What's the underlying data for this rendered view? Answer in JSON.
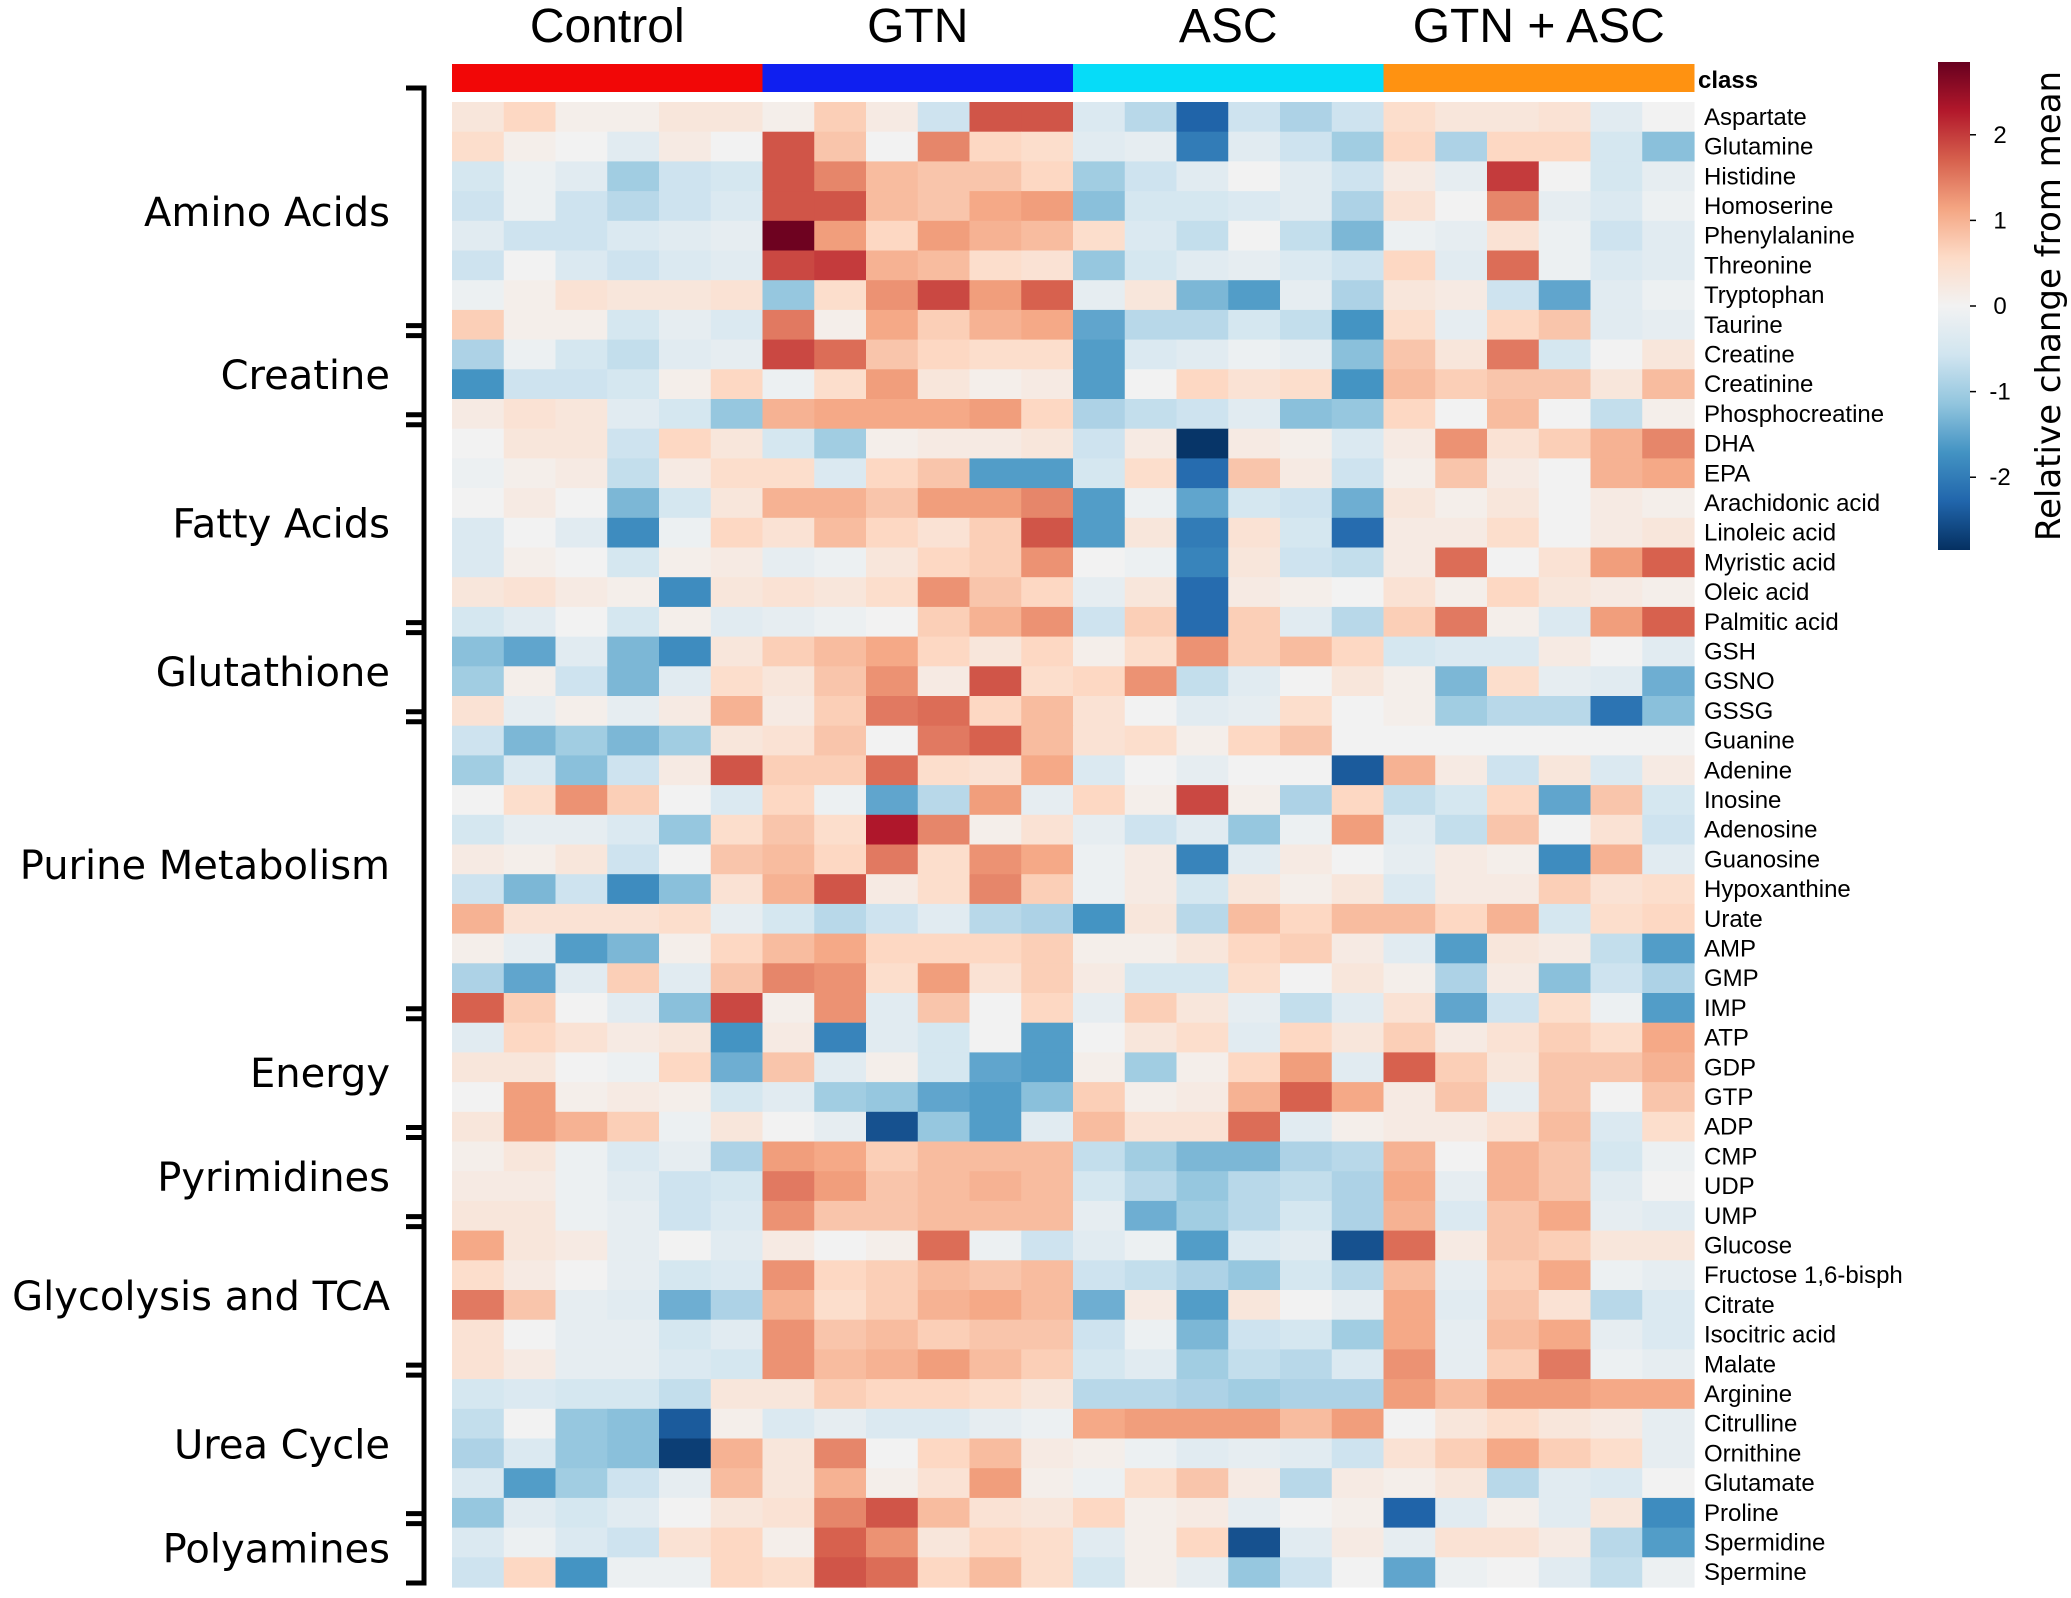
{
  "chart_data": {
    "type": "heatmap",
    "title": "",
    "groups": [
      {
        "label": "Control",
        "color": "#f20707",
        "samples": 6
      },
      {
        "label": "GTN",
        "color": "#0f1ff0",
        "samples": 6
      },
      {
        "label": "ASC",
        "color": "#06dcf8",
        "samples": 6
      },
      {
        "label": "GTN + ASC",
        "color": "#ff9211",
        "samples": 6
      }
    ],
    "class_label": "class",
    "rows": [
      "Aspartate",
      "Glutamine",
      "Histidine",
      "Homoserine",
      "Phenylalanine",
      "Threonine",
      "Tryptophan",
      "Taurine",
      "Creatine",
      "Creatinine",
      "Phosphocreatine",
      "DHA",
      "EPA",
      "Arachidonic acid",
      "Linoleic acid",
      "Myristic acid",
      "Oleic acid",
      "Palmitic acid",
      "GSH",
      "GSNO",
      "GSSG",
      "Guanine",
      "Adenine",
      "Inosine",
      "Adenosine",
      "Guanosine",
      "Hypoxanthine",
      "Urate",
      "AMP",
      "GMP",
      "IMP",
      "ATP",
      "GDP",
      "GTP",
      "ADP",
      "CMP",
      "UDP",
      "UMP",
      "Glucose",
      "Fructose 1,6-bisph",
      "Citrate",
      "Isocitric acid",
      "Malate",
      "Arginine",
      "Citrulline",
      "Ornithine",
      "Glutamate",
      "Proline",
      "Spermidine",
      "Spermine"
    ],
    "row_groups": [
      {
        "label": "Amino Acids",
        "start": 0,
        "end": 7
      },
      {
        "label": "Creatine",
        "start": 8,
        "end": 10
      },
      {
        "label": "Fatty Acids",
        "start": 11,
        "end": 17
      },
      {
        "label": "Glutathione",
        "start": 18,
        "end": 20
      },
      {
        "label": "Purine Metabolism",
        "start": 21,
        "end": 30
      },
      {
        "label": "Energy",
        "start": 31,
        "end": 34
      },
      {
        "label": "Pyrimidines",
        "start": 35,
        "end": 37
      },
      {
        "label": "Glycolysis and TCA",
        "start": 38,
        "end": 42
      },
      {
        "label": "Urea Cycle",
        "start": 43,
        "end": 47
      },
      {
        "label": "Polyamines",
        "start": 48,
        "end": 49
      }
    ],
    "values": [
      [
        0.3,
        0.6,
        0.1,
        0.1,
        0.3,
        0.3,
        0.1,
        0.7,
        0.2,
        -0.6,
        1.8,
        1.8,
        -0.4,
        -0.8,
        -2.3,
        -0.6,
        -0.9,
        -0.6,
        0.5,
        0.3,
        0.3,
        0.4,
        -0.3,
        0.0
      ],
      [
        0.5,
        0.1,
        0.0,
        -0.3,
        0.2,
        0.0,
        1.8,
        0.8,
        0.0,
        1.4,
        0.6,
        0.5,
        -0.3,
        -0.2,
        -2.0,
        -0.3,
        -0.6,
        -1.0,
        0.6,
        -0.9,
        0.6,
        0.6,
        -0.5,
        -1.2
      ],
      [
        -0.5,
        -0.1,
        -0.3,
        -1.0,
        -0.6,
        -0.5,
        1.8,
        1.4,
        0.9,
        0.8,
        0.8,
        0.6,
        -1.0,
        -0.6,
        -0.3,
        0.0,
        -0.3,
        -0.6,
        0.2,
        -0.2,
        2.0,
        0.0,
        -0.5,
        -0.2
      ],
      [
        -0.6,
        -0.1,
        -0.6,
        -0.8,
        -0.6,
        -0.4,
        1.8,
        1.8,
        0.9,
        0.8,
        1.1,
        1.2,
        -1.2,
        -0.5,
        -0.5,
        -0.4,
        -0.3,
        -0.9,
        0.4,
        0.0,
        1.4,
        -0.2,
        -0.4,
        -0.1
      ],
      [
        -0.3,
        -0.6,
        -0.6,
        -0.4,
        -0.3,
        -0.2,
        2.8,
        1.2,
        0.6,
        1.2,
        1.0,
        0.9,
        0.5,
        -0.4,
        -0.7,
        0.0,
        -0.7,
        -1.3,
        -0.1,
        -0.2,
        0.4,
        -0.1,
        -0.6,
        -0.3
      ],
      [
        -0.6,
        0.0,
        -0.4,
        -0.6,
        -0.4,
        -0.3,
        1.9,
        2.0,
        1.0,
        0.9,
        0.5,
        0.4,
        -1.1,
        -0.5,
        -0.3,
        -0.2,
        -0.4,
        -0.6,
        0.6,
        -0.3,
        1.6,
        -0.1,
        -0.4,
        -0.3
      ],
      [
        -0.1,
        0.1,
        0.4,
        0.3,
        0.3,
        0.4,
        -1.1,
        0.5,
        1.3,
        1.9,
        1.2,
        1.7,
        -0.2,
        0.3,
        -1.3,
        -1.6,
        -0.2,
        -0.9,
        0.3,
        0.2,
        -0.6,
        -1.5,
        -0.3,
        -0.1
      ],
      [
        0.7,
        0.1,
        0.1,
        -0.5,
        -0.2,
        -0.4,
        1.5,
        0.1,
        1.1,
        0.7,
        1.0,
        1.1,
        -1.5,
        -0.8,
        -0.8,
        -0.5,
        -0.7,
        -1.7,
        0.5,
        -0.2,
        0.6,
        0.8,
        -0.3,
        -0.2
      ],
      [
        -0.9,
        -0.1,
        -0.5,
        -0.7,
        -0.3,
        -0.2,
        1.9,
        1.6,
        0.8,
        0.6,
        0.5,
        0.5,
        -1.6,
        -0.4,
        -0.3,
        -0.1,
        -0.2,
        -1.2,
        0.8,
        0.3,
        1.5,
        -0.5,
        0.0,
        0.3
      ],
      [
        -1.7,
        -0.6,
        -0.6,
        -0.5,
        0.1,
        0.6,
        -0.1,
        0.5,
        1.2,
        0.3,
        0.1,
        0.2,
        -1.6,
        0.0,
        0.6,
        0.4,
        0.5,
        -1.7,
        0.9,
        0.7,
        0.8,
        0.8,
        0.3,
        0.9
      ],
      [
        0.2,
        0.4,
        0.3,
        -0.3,
        -0.5,
        -1.1,
        1.0,
        1.1,
        1.1,
        1.1,
        1.2,
        0.6,
        -0.9,
        -0.7,
        -0.6,
        -0.3,
        -1.2,
        -1.1,
        0.6,
        0.0,
        0.9,
        0.0,
        -0.7,
        0.1
      ],
      [
        0.0,
        0.3,
        0.3,
        -0.6,
        0.6,
        0.3,
        -0.5,
        -1.0,
        0.1,
        0.2,
        0.2,
        0.3,
        -0.6,
        0.2,
        -2.8,
        0.2,
        0.1,
        -0.4,
        0.2,
        1.3,
        0.4,
        0.7,
        1.0,
        1.4
      ],
      [
        -0.1,
        0.1,
        0.2,
        -0.7,
        0.2,
        0.5,
        0.5,
        -0.4,
        0.6,
        0.8,
        -1.6,
        -1.6,
        -0.5,
        0.5,
        -2.2,
        0.8,
        0.2,
        -0.6,
        0.1,
        0.8,
        0.2,
        0.0,
        1.0,
        1.1
      ],
      [
        0.0,
        0.2,
        0.0,
        -1.3,
        -0.5,
        0.3,
        1.0,
        1.0,
        0.8,
        1.2,
        1.2,
        1.4,
        -1.6,
        -0.1,
        -1.5,
        -0.5,
        -0.6,
        -1.4,
        0.3,
        0.1,
        0.3,
        0.0,
        0.2,
        0.1
      ],
      [
        -0.4,
        0.0,
        -0.3,
        -1.8,
        -0.1,
        0.6,
        0.4,
        0.9,
        0.6,
        0.4,
        0.7,
        1.8,
        -1.6,
        0.3,
        -2.0,
        0.4,
        -0.5,
        -2.2,
        0.2,
        0.2,
        0.5,
        0.0,
        0.2,
        0.3
      ],
      [
        -0.4,
        0.1,
        0.0,
        -0.5,
        0.1,
        0.2,
        -0.2,
        -0.1,
        0.3,
        0.6,
        0.7,
        1.3,
        0.0,
        -0.1,
        -1.9,
        0.3,
        -0.6,
        -0.7,
        0.2,
        1.6,
        0.0,
        0.4,
        1.2,
        1.7
      ],
      [
        0.3,
        0.4,
        0.2,
        0.1,
        -1.8,
        0.3,
        0.4,
        0.3,
        0.5,
        1.3,
        0.8,
        0.6,
        -0.2,
        0.3,
        -2.2,
        0.2,
        0.1,
        0.0,
        0.4,
        0.1,
        0.6,
        0.3,
        0.2,
        0.1
      ],
      [
        -0.5,
        -0.3,
        0.0,
        -0.5,
        0.1,
        -0.3,
        -0.2,
        -0.1,
        0.0,
        0.7,
        1.0,
        1.3,
        -0.6,
        0.7,
        -2.2,
        0.7,
        -0.3,
        -0.8,
        0.7,
        1.5,
        0.1,
        -0.4,
        1.2,
        1.7
      ],
      [
        -1.2,
        -1.5,
        -0.3,
        -1.3,
        -1.8,
        0.3,
        0.7,
        0.9,
        1.1,
        0.6,
        0.3,
        0.6,
        0.1,
        0.5,
        1.3,
        0.7,
        0.9,
        0.6,
        -0.5,
        -0.4,
        -0.4,
        0.2,
        0.0,
        -0.3
      ],
      [
        -1.0,
        0.1,
        -0.6,
        -1.3,
        -0.3,
        0.5,
        0.3,
        0.8,
        1.3,
        0.2,
        1.8,
        0.5,
        0.6,
        1.3,
        -0.7,
        -0.3,
        0.0,
        0.3,
        0.1,
        -1.3,
        0.5,
        -0.2,
        -0.3,
        -1.4
      ],
      [
        0.4,
        -0.2,
        0.1,
        -0.2,
        0.2,
        1.0,
        0.2,
        0.7,
        1.5,
        1.6,
        0.6,
        0.9,
        0.4,
        0.0,
        -0.3,
        -0.2,
        0.5,
        0.0,
        0.1,
        -1.0,
        -0.8,
        -0.8,
        -2.1,
        -1.2
      ],
      [
        -0.6,
        -1.3,
        -1.0,
        -1.3,
        -1.0,
        0.3,
        0.4,
        0.8,
        0.0,
        1.5,
        1.7,
        0.9,
        0.4,
        0.5,
        0.1,
        0.6,
        0.8,
        0.0,
        0.0,
        0.0,
        0.0,
        0.0,
        0.0,
        0.0
      ],
      [
        -1.0,
        -0.4,
        -1.2,
        -0.6,
        0.2,
        1.8,
        0.7,
        0.7,
        1.6,
        0.5,
        0.4,
        1.1,
        -0.4,
        0.0,
        -0.2,
        0.0,
        0.0,
        -2.4,
        1.0,
        0.2,
        -0.6,
        0.3,
        -0.4,
        0.2
      ],
      [
        0.0,
        0.5,
        1.3,
        0.7,
        0.0,
        -0.4,
        0.6,
        -0.1,
        -1.5,
        -0.8,
        1.2,
        -0.2,
        0.6,
        0.1,
        1.9,
        0.1,
        -0.9,
        0.6,
        -0.7,
        -0.5,
        0.6,
        -1.5,
        0.8,
        -0.5
      ],
      [
        -0.5,
        -0.2,
        -0.2,
        -0.4,
        -1.1,
        0.5,
        0.8,
        0.5,
        2.3,
        1.4,
        0.1,
        0.4,
        -0.2,
        -0.6,
        -0.3,
        -1.1,
        -0.1,
        1.2,
        -0.3,
        -0.7,
        0.8,
        0.0,
        0.4,
        -0.6
      ],
      [
        0.2,
        0.1,
        0.3,
        -0.6,
        0.0,
        0.8,
        0.9,
        0.6,
        1.5,
        0.5,
        1.3,
        1.1,
        -0.1,
        0.2,
        -1.9,
        -0.3,
        0.2,
        0.0,
        -0.2,
        0.2,
        0.1,
        -1.8,
        1.0,
        -0.3
      ],
      [
        -0.6,
        -1.3,
        -0.6,
        -1.8,
        -1.2,
        0.4,
        1.0,
        1.8,
        0.2,
        0.5,
        1.4,
        0.7,
        -0.1,
        0.2,
        -0.5,
        0.3,
        0.1,
        0.3,
        -0.4,
        0.2,
        0.2,
        0.7,
        0.4,
        0.5
      ],
      [
        1.0,
        0.4,
        0.4,
        0.4,
        0.5,
        -0.2,
        -0.5,
        -0.8,
        -0.6,
        -0.3,
        -0.8,
        -0.9,
        -1.7,
        0.3,
        -0.8,
        0.9,
        0.6,
        0.9,
        0.9,
        0.6,
        1.0,
        -0.5,
        0.5,
        0.6
      ],
      [
        0.1,
        -0.2,
        -1.6,
        -1.3,
        0.1,
        0.6,
        0.9,
        1.1,
        0.6,
        0.6,
        0.6,
        0.7,
        0.1,
        0.1,
        0.3,
        0.6,
        0.7,
        0.2,
        -0.3,
        -1.6,
        0.3,
        0.2,
        -0.7,
        -1.6
      ],
      [
        -0.9,
        -1.5,
        -0.3,
        0.7,
        -0.3,
        0.8,
        1.4,
        1.3,
        0.5,
        1.2,
        0.4,
        0.7,
        0.2,
        -0.5,
        -0.5,
        0.5,
        0.0,
        0.3,
        0.1,
        -0.9,
        0.2,
        -1.2,
        -0.6,
        -0.9
      ],
      [
        1.7,
        0.7,
        0.0,
        -0.3,
        -1.2,
        1.9,
        0.1,
        1.3,
        -0.3,
        0.8,
        0.0,
        0.6,
        -0.2,
        0.7,
        0.3,
        -0.2,
        -0.7,
        -0.3,
        0.4,
        -1.5,
        -0.6,
        0.5,
        -0.1,
        -1.6
      ],
      [
        -0.3,
        0.6,
        0.4,
        0.2,
        0.3,
        -1.7,
        0.2,
        -1.9,
        -0.3,
        -0.5,
        0.0,
        -1.6,
        0.0,
        0.3,
        0.5,
        -0.3,
        0.6,
        0.3,
        0.7,
        0.2,
        0.4,
        0.7,
        0.5,
        1.1
      ],
      [
        0.3,
        0.3,
        0.0,
        -0.1,
        0.6,
        -1.4,
        0.8,
        -0.3,
        0.1,
        -0.5,
        -1.5,
        -1.6,
        0.1,
        -1.0,
        0.1,
        0.6,
        1.2,
        -0.3,
        1.7,
        0.7,
        0.3,
        0.8,
        0.8,
        1.0
      ],
      [
        0.0,
        1.2,
        0.1,
        0.2,
        0.1,
        -0.5,
        -0.3,
        -1.0,
        -1.1,
        -1.5,
        -1.6,
        -1.2,
        0.7,
        0.1,
        0.2,
        1.0,
        1.7,
        1.1,
        0.2,
        0.8,
        -0.2,
        0.8,
        0.0,
        0.8
      ],
      [
        0.3,
        1.2,
        1.0,
        0.7,
        -0.1,
        0.3,
        0.0,
        -0.2,
        -2.5,
        -1.1,
        -1.6,
        -0.3,
        0.9,
        0.4,
        0.4,
        1.6,
        -0.3,
        0.1,
        0.2,
        0.2,
        0.4,
        0.9,
        -0.4,
        0.5
      ],
      [
        0.1,
        0.3,
        -0.1,
        -0.4,
        -0.2,
        -0.9,
        1.2,
        1.1,
        0.7,
        0.9,
        0.9,
        0.9,
        -0.7,
        -1.0,
        -1.3,
        -1.3,
        -0.9,
        -0.8,
        1.0,
        0.0,
        1.0,
        0.8,
        -0.5,
        -0.1
      ],
      [
        0.2,
        0.2,
        -0.1,
        -0.3,
        -0.6,
        -0.5,
        1.5,
        1.2,
        0.8,
        0.9,
        1.0,
        0.9,
        -0.5,
        -0.8,
        -1.1,
        -0.8,
        -0.7,
        -0.9,
        1.1,
        -0.2,
        1.0,
        0.8,
        -0.3,
        0.0
      ],
      [
        0.3,
        0.3,
        -0.1,
        -0.2,
        -0.6,
        -0.4,
        1.3,
        0.8,
        0.8,
        0.9,
        0.9,
        0.9,
        -0.2,
        -1.4,
        -1.0,
        -0.8,
        -0.5,
        -0.9,
        1.0,
        -0.4,
        0.8,
        1.1,
        -0.2,
        -0.3
      ],
      [
        1.1,
        0.3,
        0.2,
        -0.2,
        0.0,
        -0.3,
        0.2,
        0.0,
        0.1,
        1.6,
        -0.1,
        -0.6,
        -0.3,
        -0.1,
        -1.6,
        -0.4,
        -0.3,
        -2.5,
        1.6,
        0.2,
        0.8,
        0.7,
        0.3,
        0.3
      ],
      [
        0.5,
        0.2,
        0.0,
        -0.2,
        -0.5,
        -0.4,
        1.3,
        0.6,
        0.7,
        0.9,
        0.8,
        0.9,
        -0.6,
        -0.7,
        -0.9,
        -1.1,
        -0.5,
        -0.8,
        0.9,
        -0.2,
        0.7,
        1.1,
        -0.1,
        -0.2
      ],
      [
        1.5,
        0.8,
        -0.2,
        -0.3,
        -1.4,
        -0.9,
        1.0,
        0.5,
        0.7,
        1.0,
        1.1,
        0.9,
        -1.4,
        0.2,
        -1.6,
        0.3,
        0.0,
        -0.2,
        1.1,
        -0.3,
        0.8,
        0.4,
        -0.8,
        -0.4
      ],
      [
        0.4,
        0.0,
        -0.2,
        -0.2,
        -0.5,
        -0.3,
        1.3,
        0.8,
        0.9,
        0.7,
        0.8,
        0.8,
        -0.6,
        -0.1,
        -1.3,
        -0.6,
        -0.5,
        -1.0,
        1.1,
        -0.2,
        0.9,
        1.1,
        -0.2,
        -0.4
      ],
      [
        0.4,
        0.2,
        -0.2,
        -0.2,
        -0.4,
        -0.5,
        1.3,
        0.9,
        1.0,
        1.2,
        0.9,
        0.7,
        -0.5,
        -0.3,
        -1.0,
        -0.7,
        -0.8,
        -0.4,
        1.3,
        -0.2,
        0.7,
        1.5,
        -0.1,
        -0.2
      ],
      [
        -0.5,
        -0.4,
        -0.5,
        -0.5,
        -0.7,
        0.3,
        0.3,
        0.7,
        0.6,
        0.6,
        0.5,
        0.3,
        -0.8,
        -0.8,
        -0.9,
        -1.0,
        -0.9,
        -0.9,
        1.2,
        0.9,
        1.2,
        1.2,
        1.1,
        1.1
      ],
      [
        -0.7,
        0.0,
        -1.1,
        -1.2,
        -2.4,
        0.1,
        -0.4,
        -0.2,
        -0.4,
        -0.4,
        -0.2,
        -0.1,
        1.1,
        1.2,
        1.2,
        1.2,
        0.9,
        1.2,
        0.0,
        0.3,
        0.5,
        0.3,
        0.2,
        -0.2
      ],
      [
        -0.9,
        -0.4,
        -1.1,
        -1.2,
        -2.7,
        1.0,
        0.3,
        1.4,
        0.0,
        0.6,
        0.9,
        0.2,
        0.1,
        -0.1,
        -0.3,
        -0.2,
        -0.3,
        -0.6,
        0.4,
        0.7,
        1.1,
        0.7,
        0.5,
        -0.2
      ],
      [
        -0.4,
        -1.6,
        -1.0,
        -0.6,
        -0.2,
        0.9,
        0.3,
        1.0,
        0.1,
        0.4,
        1.2,
        0.1,
        -0.1,
        0.5,
        0.8,
        0.2,
        -0.8,
        0.2,
        0.1,
        0.3,
        -0.8,
        -0.3,
        -0.4,
        0.0
      ],
      [
        -1.1,
        -0.3,
        -0.5,
        -0.3,
        0.0,
        0.3,
        0.4,
        1.4,
        1.8,
        0.9,
        0.4,
        0.3,
        0.6,
        0.1,
        0.2,
        -0.2,
        0.0,
        0.1,
        -2.3,
        -0.3,
        0.1,
        -0.3,
        0.3,
        -1.8
      ],
      [
        -0.4,
        -0.1,
        -0.4,
        -0.6,
        0.4,
        0.6,
        0.1,
        1.7,
        1.3,
        0.3,
        0.6,
        0.5,
        -0.3,
        0.1,
        0.6,
        -2.5,
        -0.3,
        0.2,
        -0.2,
        0.4,
        0.4,
        0.2,
        -0.8,
        -1.6
      ],
      [
        -0.6,
        0.6,
        -1.7,
        -0.1,
        -0.1,
        0.6,
        0.5,
        1.8,
        1.6,
        0.6,
        0.9,
        0.5,
        -0.5,
        0.1,
        -0.2,
        -1.1,
        -0.6,
        0.0,
        -1.5,
        -0.1,
        0.0,
        -0.3,
        -0.7,
        -0.1
      ]
    ],
    "colorbar": {
      "label": "Relative change from mean",
      "ticks": [
        2,
        1,
        0,
        -1,
        -2
      ],
      "tick_labels": [
        "2",
        "1",
        "0",
        "-1",
        "-2"
      ],
      "range": [
        -2.85,
        2.85
      ],
      "colors": [
        "#053061",
        "#2166ac",
        "#4393c3",
        "#92c5de",
        "#d1e5f0",
        "#f2f2f2",
        "#fddbc7",
        "#f4a582",
        "#d6604d",
        "#b2182b",
        "#67001f"
      ]
    }
  }
}
